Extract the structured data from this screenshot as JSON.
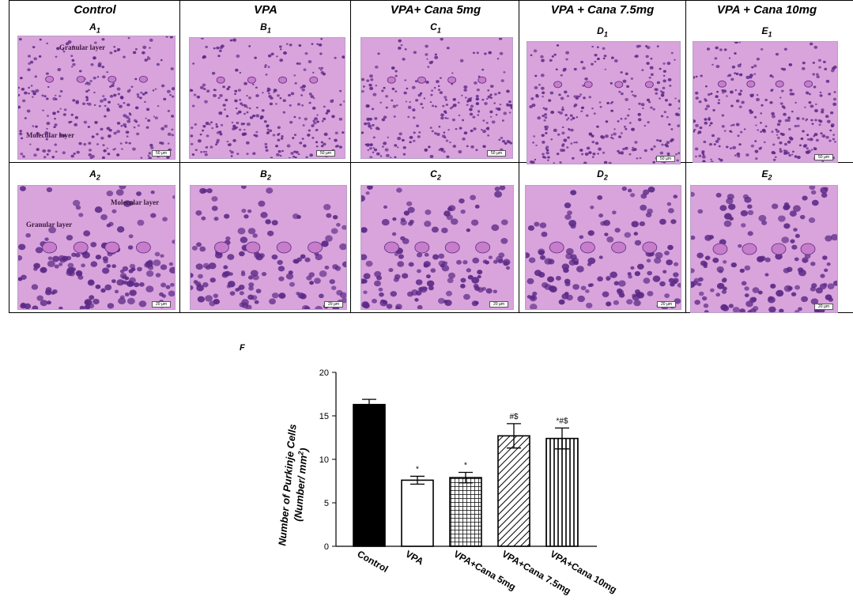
{
  "columns": [
    "Control",
    "VPA",
    "VPA+ Cana 5mg",
    "VPA + Cana 7.5mg",
    "VPA + Cana 10mg"
  ],
  "row1_labels": [
    {
      "letter": "A",
      "sub": "1"
    },
    {
      "letter": "B",
      "sub": "1"
    },
    {
      "letter": "C",
      "sub": "1"
    },
    {
      "letter": "D",
      "sub": "1"
    },
    {
      "letter": "E",
      "sub": "1"
    }
  ],
  "row2_labels": [
    {
      "letter": "A",
      "sub": "2"
    },
    {
      "letter": "B",
      "sub": "2"
    },
    {
      "letter": "C",
      "sub": "2"
    },
    {
      "letter": "D",
      "sub": "2"
    },
    {
      "letter": "E",
      "sub": "2"
    }
  ],
  "overlays": {
    "a1_granular": "Granular layer",
    "a1_molecular": "Molecular layer",
    "a2_molecular": "Molecular layer",
    "a2_granular": "Granular layer"
  },
  "scale_50": "50 µm",
  "scale_20": "20 µm",
  "panel_f_label": "F",
  "colors": {
    "tissue_bg": "#d9a3dc",
    "nuclei": "#5b2a86",
    "cell_body": "#c77dc9"
  },
  "chart_data": {
    "type": "bar",
    "categories": [
      "Control",
      "VPA",
      "VPA+Cana 5mg",
      "VPA+Cana 7.5mg",
      "VPA+Cana 10mg"
    ],
    "values": [
      16.3,
      7.6,
      7.9,
      12.7,
      12.4
    ],
    "errors": [
      0.6,
      0.45,
      0.6,
      1.4,
      1.2
    ],
    "annotations": [
      "",
      "*",
      "*",
      "#$",
      "*#$"
    ],
    "fills": [
      "solid-black",
      "white",
      "grid",
      "diagonal-hatch",
      "vertical-hatch"
    ],
    "ylabel_line1": "Number of Purkinje Cells",
    "ylabel_line2": "(Number/ mm",
    "ylabel_sup": "2",
    "ylabel_end": ")",
    "ylim": [
      0,
      20
    ],
    "yticks": [
      0,
      5,
      10,
      15,
      20
    ]
  }
}
